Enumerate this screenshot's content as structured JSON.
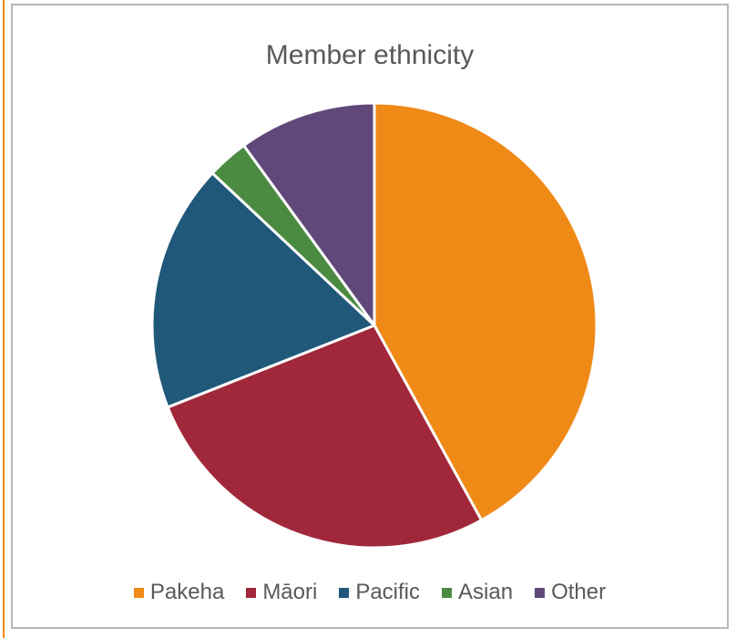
{
  "chart_data": {
    "type": "pie",
    "title": "Member ethnicity",
    "legend_position": "bottom",
    "slices": [
      {
        "label": "Pakeha",
        "value": 42,
        "color": "#f08a17"
      },
      {
        "label": "Māori",
        "value": 27,
        "color": "#a0283a"
      },
      {
        "label": "Pacific",
        "value": 18,
        "color": "#1f5879"
      },
      {
        "label": "Asian",
        "value": 3,
        "color": "#4a8a41"
      },
      {
        "label": "Other",
        "value": 10,
        "color": "#60497a"
      }
    ]
  }
}
